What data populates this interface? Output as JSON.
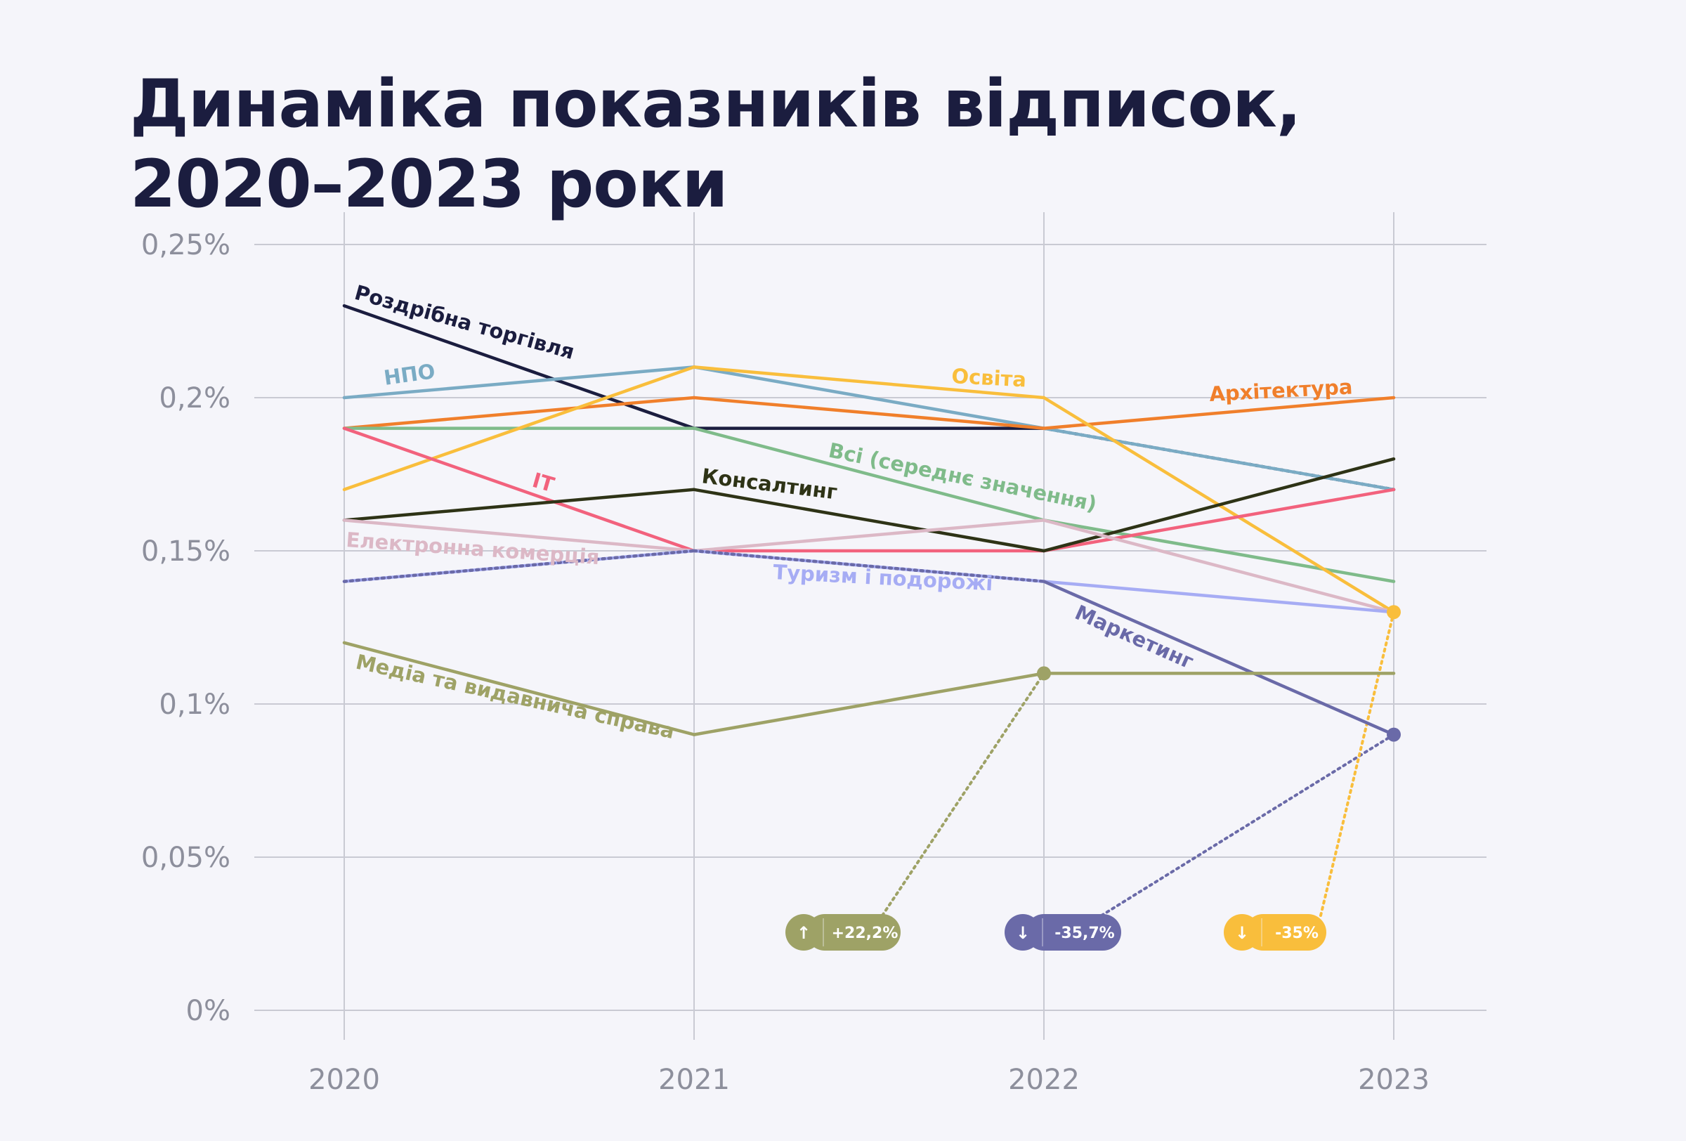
{
  "title_line1": "Динаміка показників відписок,",
  "title_line2": "2020–2023 роки",
  "chart_data": {
    "type": "line",
    "x": [
      2020,
      2021,
      2022,
      2023
    ],
    "x_tick_labels": [
      "2020",
      "2021",
      "2022",
      "2023"
    ],
    "ylim": [
      0,
      0.25
    ],
    "y_ticks": [
      0,
      0.05,
      0.1,
      0.15,
      0.2,
      0.25
    ],
    "y_tick_labels": [
      "0%",
      "0,05%",
      "0,1%",
      "0,15%",
      "0,2%",
      "0,25%"
    ],
    "grid": true,
    "series": [
      {
        "name": "Роздрібна торгівля",
        "values": [
          0.23,
          0.19,
          0.19,
          0.17
        ],
        "color": "#1b1d3f",
        "style": "solid"
      },
      {
        "name": "НПО",
        "values": [
          0.2,
          0.21,
          0.19,
          0.17
        ],
        "color": "#7aabc4",
        "style": "solid"
      },
      {
        "name": "Архітектура",
        "values": [
          0.19,
          0.2,
          0.19,
          0.2
        ],
        "color": "#f07f2b",
        "style": "solid"
      },
      {
        "name": "Всі (середнє значення)",
        "values": [
          0.19,
          0.19,
          0.16,
          0.14
        ],
        "color": "#7fbb8a",
        "style": "solid"
      },
      {
        "name": "Освіта",
        "values": [
          0.17,
          0.21,
          0.2,
          0.13
        ],
        "color": "#f9be3c",
        "style": "solid"
      },
      {
        "name": "ІТ",
        "values": [
          0.19,
          0.15,
          0.15,
          0.17
        ],
        "color": "#f2627d",
        "style": "solid"
      },
      {
        "name": "Консалтинг",
        "values": [
          0.16,
          0.17,
          0.15,
          0.18
        ],
        "color": "#2e3316",
        "style": "solid"
      },
      {
        "name": "Електронна комерція",
        "values": [
          0.16,
          0.15,
          0.16,
          0.13
        ],
        "color": "#dcb8c6",
        "style": "solid"
      },
      {
        "name": "Туризм і подорожі",
        "values": [
          0.14,
          0.15,
          0.14,
          0.13
        ],
        "color": "#a6acf4",
        "style": "solid"
      },
      {
        "name": "Маркетинг",
        "values": [
          0.14,
          0.15,
          0.14,
          0.09
        ],
        "color": "#6a6aa8",
        "style": "solid"
      },
      {
        "name": "Медіа та видавнича справа",
        "values": [
          0.12,
          0.09,
          0.11,
          0.11
        ],
        "color": "#9ea266",
        "style": "solid"
      }
    ],
    "annotations": [
      {
        "text": "+22,2%",
        "arrow": "↑",
        "color": "#9ea266",
        "target": {
          "x": 2022,
          "y": 0.11
        }
      },
      {
        "text": "-35,7%",
        "arrow": "↓",
        "color": "#6a6aa8",
        "target": {
          "x": 2023,
          "y": 0.09
        }
      },
      {
        "text": "-35%",
        "arrow": "↓",
        "color": "#f9be3c",
        "target": {
          "x": 2023,
          "y": 0.13
        }
      }
    ]
  }
}
